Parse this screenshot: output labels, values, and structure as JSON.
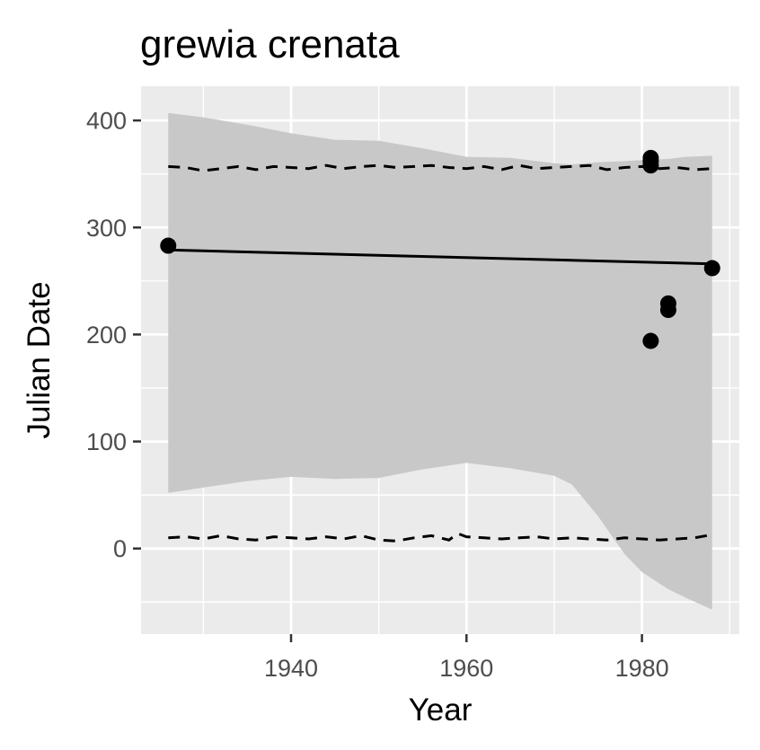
{
  "chart_data": {
    "type": "scatter",
    "title": "grewia crenata",
    "xlabel": "Year",
    "ylabel": "Julian Date",
    "xlim": [
      1922.9,
      1991.1
    ],
    "ylim": [
      -80,
      432
    ],
    "x_ticks": [
      1940,
      1960,
      1980
    ],
    "x_tick_labels": [
      "1940",
      "1960",
      "1980"
    ],
    "y_ticks": [
      0,
      100,
      200,
      300,
      400
    ],
    "y_tick_labels": [
      "0",
      "100",
      "200",
      "300",
      "400"
    ],
    "grid": true,
    "background": "#ebebeb",
    "points": [
      {
        "x": 1926,
        "y": 283
      },
      {
        "x": 1981,
        "y": 365
      },
      {
        "x": 1981,
        "y": 362
      },
      {
        "x": 1981,
        "y": 358
      },
      {
        "x": 1981,
        "y": 194
      },
      {
        "x": 1983,
        "y": 229
      },
      {
        "x": 1983,
        "y": 223
      },
      {
        "x": 1988,
        "y": 262
      }
    ],
    "trend_line": {
      "x": [
        1926,
        1988
      ],
      "y": [
        279,
        266
      ]
    },
    "ribbon": {
      "color": "#c8c8c8",
      "x": [
        1926,
        1930,
        1935,
        1940,
        1945,
        1950,
        1955,
        1960,
        1965,
        1970,
        1972,
        1975,
        1978,
        1980,
        1983,
        1985,
        1988
      ],
      "upper": [
        407,
        403,
        396,
        388,
        382,
        381,
        374,
        366,
        365,
        360,
        359,
        361,
        362,
        363,
        364,
        366,
        367
      ],
      "lower": [
        52,
        57,
        63,
        67,
        65,
        66,
        74,
        80,
        75,
        68,
        60,
        30,
        -5,
        -22,
        -38,
        -46,
        -57
      ]
    },
    "upper_dashed": {
      "x": [
        1926,
        1928,
        1930,
        1932,
        1934,
        1936,
        1938,
        1940,
        1942,
        1944,
        1946,
        1948,
        1950,
        1952,
        1954,
        1956,
        1958,
        1960,
        1962,
        1964,
        1966,
        1968,
        1970,
        1972,
        1974,
        1976,
        1978,
        1980,
        1982,
        1984,
        1986,
        1988
      ],
      "y": [
        357,
        356,
        353,
        355,
        357,
        354,
        357,
        356,
        355,
        358,
        355,
        357,
        358,
        356,
        357,
        358,
        356,
        355,
        357,
        354,
        358,
        355,
        356,
        357,
        358,
        354,
        356,
        357,
        355,
        356,
        354,
        355
      ]
    },
    "lower_dashed": {
      "x": [
        1926,
        1928,
        1930,
        1932,
        1934,
        1936,
        1938,
        1940,
        1942,
        1944,
        1946,
        1948,
        1950,
        1952,
        1954,
        1956,
        1958,
        1959,
        1960,
        1962,
        1964,
        1966,
        1968,
        1970,
        1972,
        1974,
        1976,
        1978,
        1980,
        1982,
        1984,
        1986,
        1988
      ],
      "y": [
        10,
        11,
        9,
        12,
        9,
        8,
        11,
        10,
        9,
        11,
        9,
        12,
        8,
        7,
        10,
        12,
        8,
        14,
        11,
        10,
        9,
        10,
        11,
        9,
        10,
        9,
        8,
        10,
        9,
        8,
        9,
        10,
        13
      ]
    }
  }
}
